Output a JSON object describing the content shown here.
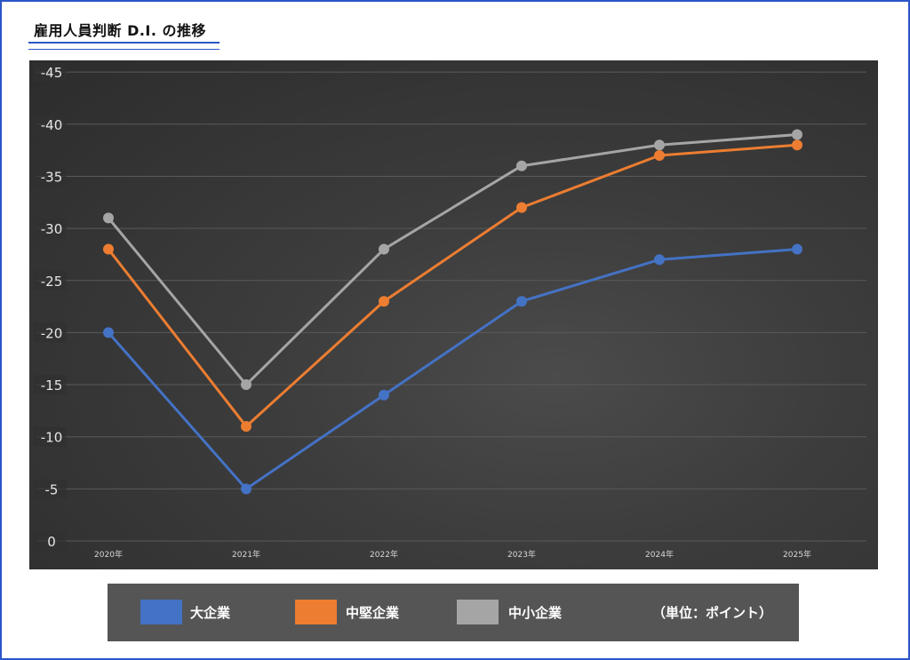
{
  "title": "雇用人員判断 D.I. の推移",
  "unit_note": "（単位：ポイント）",
  "colors": {
    "large": "#4472c4",
    "midsize": "#ed7d31",
    "small": "#a5a5a5",
    "frame": "#2a56c8"
  },
  "chart_data": {
    "type": "line",
    "title": "雇用人員判断 D.I. の推移",
    "categories": [
      "2020年",
      "2021年",
      "2022年",
      "2023年",
      "2024年",
      "2025年"
    ],
    "y_ticks": [
      "0",
      "-5",
      "-10",
      "-15",
      "-20",
      "-25",
      "-30",
      "-35",
      "-40",
      "-45"
    ],
    "ylim": [
      0,
      -45
    ],
    "y_axis_reversed": true,
    "grid": true,
    "legend_position": "bottom",
    "series": [
      {
        "name": "大企業",
        "color": "#4472c4",
        "values": [
          -20,
          -5,
          -14,
          -23,
          -27,
          -28
        ]
      },
      {
        "name": "中堅企業",
        "color": "#ed7d31",
        "values": [
          -28,
          -11,
          -23,
          -32,
          -37,
          -38
        ]
      },
      {
        "name": "中小企業",
        "color": "#a5a5a5",
        "values": [
          -31,
          -15,
          -28,
          -36,
          -38,
          -39
        ]
      }
    ]
  }
}
